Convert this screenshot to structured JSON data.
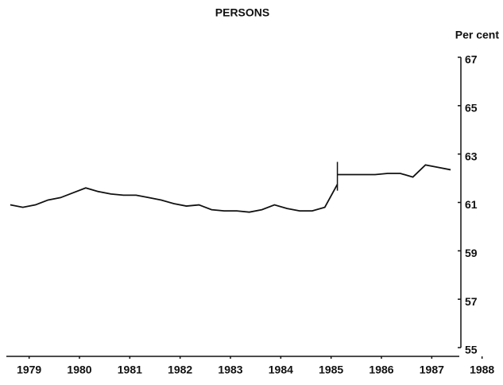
{
  "chart_data": {
    "type": "line",
    "title": "PERSONS",
    "y_axis_label": "Per cent",
    "x": [
      1979.125,
      1979.375,
      1979.625,
      1979.875,
      1980.125,
      1980.375,
      1980.625,
      1980.875,
      1981.125,
      1981.375,
      1981.625,
      1981.875,
      1982.125,
      1982.375,
      1982.625,
      1982.875,
      1983.125,
      1983.375,
      1983.625,
      1983.875,
      1984.125,
      1984.375,
      1984.625,
      1984.875,
      1985.125,
      1985.375,
      1985.625,
      1985.625,
      1985.625,
      1985.875,
      1986.125,
      1986.375,
      1986.625,
      1986.875,
      1987.125,
      1987.375,
      1987.625,
      1987.875
    ],
    "series": [
      {
        "name": "Persons",
        "color": "#111111",
        "values": [
          60.9,
          60.8,
          60.9,
          61.1,
          61.2,
          61.4,
          61.6,
          61.45,
          61.35,
          61.3,
          61.3,
          61.2,
          61.1,
          60.95,
          60.85,
          60.9,
          60.7,
          60.65,
          60.65,
          60.6,
          60.7,
          60.9,
          60.75,
          60.65,
          60.65,
          60.8,
          61.75,
          null,
          62.15,
          62.15,
          62.15,
          62.15,
          62.2,
          62.2,
          62.05,
          62.55,
          62.45,
          62.35
        ]
      }
    ],
    "xlim": [
      1979,
      1988.9
    ],
    "xticks": [
      {
        "value": 1979.5,
        "label": "1979"
      },
      {
        "value": 1980.5,
        "label": "1980"
      },
      {
        "value": 1981.5,
        "label": "1981"
      },
      {
        "value": 1982.5,
        "label": "1982"
      },
      {
        "value": 1983.5,
        "label": "1983"
      },
      {
        "value": 1984.5,
        "label": "1984"
      },
      {
        "value": 1985.5,
        "label": "1985"
      },
      {
        "value": 1986.5,
        "label": "1986"
      },
      {
        "value": 1987.5,
        "label": "1987"
      },
      {
        "value": 1988.5,
        "label": "1988"
      }
    ],
    "ylim": [
      55,
      67
    ],
    "yticks": [
      55,
      57,
      59,
      61,
      63,
      65,
      67
    ],
    "y_axis_side": "right",
    "grid": false
  }
}
